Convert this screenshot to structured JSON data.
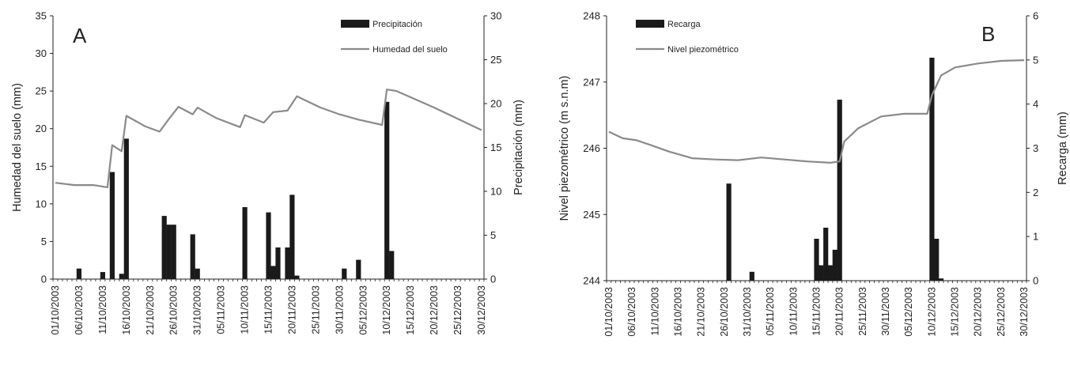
{
  "chart_data": [
    {
      "type": "bar+line",
      "panel_label": "A",
      "x_tick_labels": [
        "01/10/2003",
        "06/10/2003",
        "11/10/2003",
        "16/10/2003",
        "21/10/2003",
        "26/10/2003",
        "31/10/2003",
        "05/11/2003",
        "10/11/2003",
        "15/11/2003",
        "20/11/2003",
        "25/11/2003",
        "30/11/2003",
        "05/12/2003",
        "10/12/2003",
        "15/12/2003",
        "20/12/2003",
        "25/12/2003",
        "30/12/2003"
      ],
      "ylabel_left": "Humedad del suelo (mm)",
      "ylabel_right": "Precipitación (mm)",
      "ylim_left": [
        0,
        35
      ],
      "yticks_left": [
        0,
        5,
        10,
        15,
        20,
        25,
        30,
        35
      ],
      "ylim_right": [
        0,
        30
      ],
      "yticks_right": [
        0,
        5,
        10,
        15,
        20,
        25,
        30
      ],
      "legend_position": "top-right",
      "grid": false,
      "series": [
        {
          "name": "Precipitación",
          "type": "bar",
          "axis": "right",
          "color": "#1a1a1a",
          "points": [
            [
              "2003-10-06",
              1.2
            ],
            [
              "2003-10-11",
              0.8
            ],
            [
              "2003-10-13",
              12.2
            ],
            [
              "2003-10-15",
              0.6
            ],
            [
              "2003-10-16",
              16.0
            ],
            [
              "2003-10-24",
              7.2
            ],
            [
              "2003-10-25",
              6.2
            ],
            [
              "2003-10-26",
              6.2
            ],
            [
              "2003-10-30",
              5.1
            ],
            [
              "2003-10-31",
              1.2
            ],
            [
              "2003-11-10",
              8.2
            ],
            [
              "2003-11-15",
              7.6
            ],
            [
              "2003-11-16",
              1.5
            ],
            [
              "2003-11-17",
              3.6
            ],
            [
              "2003-11-19",
              3.6
            ],
            [
              "2003-11-20",
              9.6
            ],
            [
              "2003-11-21",
              0.4
            ],
            [
              "2003-12-01",
              1.2
            ],
            [
              "2003-12-04",
              2.2
            ],
            [
              "2003-12-10",
              20.2
            ],
            [
              "2003-12-11",
              3.2
            ]
          ]
        },
        {
          "name": "Humedad del suelo",
          "type": "line",
          "axis": "left",
          "color": "#8a8a8a",
          "points": [
            [
              "2003-10-01",
              12.8
            ],
            [
              "2003-10-05",
              12.5
            ],
            [
              "2003-10-09",
              12.5
            ],
            [
              "2003-10-12",
              12.2
            ],
            [
              "2003-10-13",
              17.8
            ],
            [
              "2003-10-15",
              17.0
            ],
            [
              "2003-10-16",
              21.7
            ],
            [
              "2003-10-20",
              20.3
            ],
            [
              "2003-10-23",
              19.6
            ],
            [
              "2003-10-25",
              21.3
            ],
            [
              "2003-10-27",
              22.9
            ],
            [
              "2003-10-30",
              21.9
            ],
            [
              "2003-10-31",
              22.8
            ],
            [
              "2003-11-04",
              21.4
            ],
            [
              "2003-11-09",
              20.2
            ],
            [
              "2003-11-10",
              21.8
            ],
            [
              "2003-11-14",
              20.8
            ],
            [
              "2003-11-16",
              22.2
            ],
            [
              "2003-11-19",
              22.4
            ],
            [
              "2003-11-21",
              24.3
            ],
            [
              "2003-11-26",
              22.8
            ],
            [
              "2003-11-30",
              21.9
            ],
            [
              "2003-12-04",
              21.2
            ],
            [
              "2003-12-09",
              20.5
            ],
            [
              "2003-12-10",
              25.2
            ],
            [
              "2003-12-12",
              25.0
            ],
            [
              "2003-12-20",
              22.8
            ],
            [
              "2003-12-30",
              19.8
            ]
          ]
        }
      ]
    },
    {
      "type": "bar+line",
      "panel_label": "B",
      "x_tick_labels": [
        "01/10/2003",
        "06/10/2003",
        "11/10/2003",
        "16/10/2003",
        "21/10/2003",
        "26/10/2003",
        "31/10/2003",
        "05/11/2003",
        "10/11/2003",
        "15/11/2003",
        "20/11/2003",
        "25/11/2003",
        "30/11/2003",
        "05/12/2003",
        "10/12/2003",
        "15/12/2003",
        "20/12/2003",
        "25/12/2003",
        "30/12/2003"
      ],
      "ylabel_left": "Nivel piezométrico (m s.n.m)",
      "ylabel_right": "Recarga (mm)",
      "ylim_left": [
        244,
        248
      ],
      "yticks_left": [
        244,
        245,
        246,
        247,
        248
      ],
      "ylim_right": [
        0,
        6
      ],
      "yticks_right": [
        0,
        1,
        2,
        3,
        4,
        5,
        6
      ],
      "legend_position": "top-left",
      "grid": false,
      "series": [
        {
          "name": "Recarga",
          "type": "bar",
          "axis": "right",
          "color": "#1a1a1a",
          "points": [
            [
              "2003-10-27",
              2.2
            ],
            [
              "2003-11-01",
              0.2
            ],
            [
              "2003-11-15",
              0.95
            ],
            [
              "2003-11-16",
              0.35
            ],
            [
              "2003-11-17",
              1.2
            ],
            [
              "2003-11-18",
              0.35
            ],
            [
              "2003-11-19",
              0.7
            ],
            [
              "2003-11-20",
              4.1
            ],
            [
              "2003-12-10",
              5.05
            ],
            [
              "2003-12-11",
              0.95
            ],
            [
              "2003-12-12",
              0.05
            ]
          ]
        },
        {
          "name": "Nivel piezométrico",
          "type": "line",
          "axis": "left",
          "color": "#8a8a8a",
          "points": [
            [
              "2003-10-01",
              246.25
            ],
            [
              "2003-10-04",
              246.15
            ],
            [
              "2003-10-07",
              246.12
            ],
            [
              "2003-10-10",
              246.05
            ],
            [
              "2003-10-14",
              245.95
            ],
            [
              "2003-10-19",
              245.85
            ],
            [
              "2003-10-24",
              245.83
            ],
            [
              "2003-10-29",
              245.82
            ],
            [
              "2003-11-03",
              245.86
            ],
            [
              "2003-11-08",
              245.83
            ],
            [
              "2003-11-13",
              245.8
            ],
            [
              "2003-11-18",
              245.78
            ],
            [
              "2003-11-20",
              245.8
            ],
            [
              "2003-11-21",
              246.1
            ],
            [
              "2003-11-24",
              246.3
            ],
            [
              "2003-11-29",
              246.48
            ],
            [
              "2003-12-04",
              246.52
            ],
            [
              "2003-12-09",
              246.52
            ],
            [
              "2003-12-10",
              246.8
            ],
            [
              "2003-12-12",
              247.1
            ],
            [
              "2003-12-15",
              247.22
            ],
            [
              "2003-12-20",
              247.28
            ],
            [
              "2003-12-25",
              247.32
            ],
            [
              "2003-12-30",
              247.33
            ]
          ]
        }
      ]
    }
  ]
}
